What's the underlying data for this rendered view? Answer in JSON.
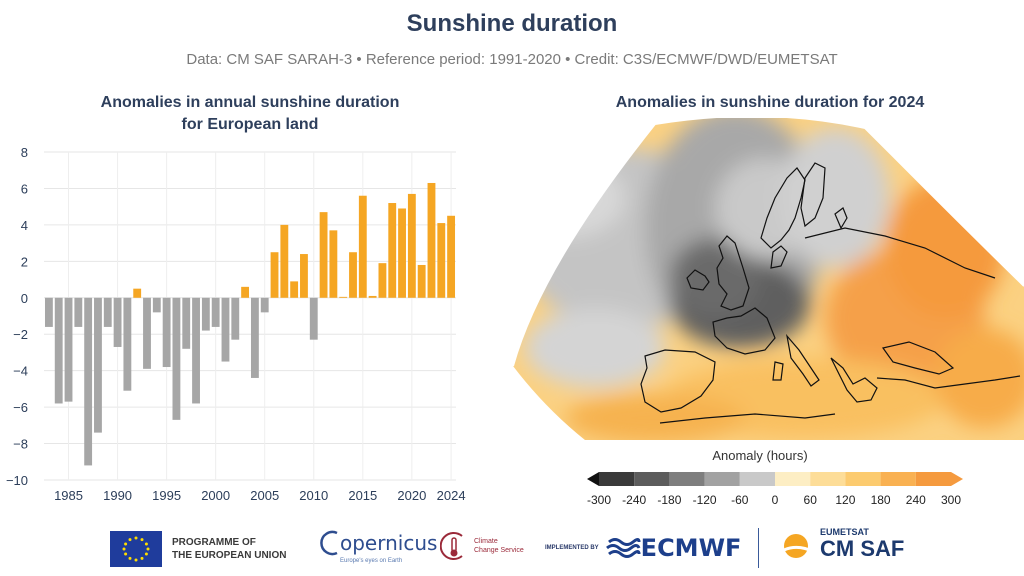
{
  "header": {
    "title": "Sunshine duration",
    "subtitle": "Data: CM SAF SARAH-3 • Reference period: 1991-2020 • Credit: C3S/ECMWF/DWD/EUMETSAT"
  },
  "chart_data": [
    {
      "type": "bar",
      "title": "Anomalies in annual sunshine duration for European land",
      "title_lines": [
        "Anomalies in annual sunshine duration",
        "for European land"
      ],
      "xlabel": "",
      "ylabel": "",
      "ylim": [
        -10,
        8
      ],
      "yticks": [
        8,
        6,
        4,
        2,
        0,
        -2,
        -4,
        -6,
        -8,
        -10
      ],
      "xticks": [
        1985,
        1990,
        1995,
        2000,
        2005,
        2010,
        2015,
        2020,
        2024
      ],
      "grid": true,
      "colors": {
        "positive": "#f5a623",
        "negative": "#a6a6a6"
      },
      "x": [
        1983,
        1984,
        1985,
        1986,
        1987,
        1988,
        1989,
        1990,
        1991,
        1992,
        1993,
        1994,
        1995,
        1996,
        1997,
        1998,
        1999,
        2000,
        2001,
        2002,
        2003,
        2004,
        2005,
        2006,
        2007,
        2008,
        2009,
        2010,
        2011,
        2012,
        2013,
        2014,
        2015,
        2016,
        2017,
        2018,
        2019,
        2020,
        2021,
        2022,
        2023,
        2024
      ],
      "values": [
        -1.6,
        -5.8,
        -5.7,
        -1.6,
        -9.2,
        -7.4,
        -1.6,
        -2.7,
        -5.1,
        0.5,
        -3.9,
        -0.8,
        -3.8,
        -6.7,
        -2.8,
        -5.8,
        -1.8,
        -1.6,
        -3.5,
        -2.3,
        0.6,
        -4.4,
        -0.8,
        2.5,
        4.0,
        0.9,
        2.4,
        -2.3,
        4.7,
        3.7,
        0.05,
        2.5,
        5.6,
        0.1,
        1.9,
        5.2,
        4.9,
        5.7,
        1.8,
        6.3,
        4.1,
        4.5
      ]
    },
    {
      "type": "heatmap",
      "title": "Anomalies in sunshine duration for 2024",
      "colorbar": {
        "label": "Anomaly (hours)",
        "ticks": [
          "-300",
          "-240",
          "-180",
          "-120",
          "-60",
          "0",
          "60",
          "120",
          "180",
          "240",
          "300"
        ],
        "colors": [
          "#3a3a3a",
          "#5c5c5c",
          "#7e7e7e",
          "#a2a2a2",
          "#c9c9c9",
          "#fdeec4",
          "#fddd98",
          "#fccb6f",
          "#f9b152",
          "#f59a3e"
        ],
        "extend": "both"
      }
    }
  ],
  "logos": {
    "eu_text": "PROGRAMME OF\nTHE EUROPEAN UNION",
    "copernicus": "opernicus",
    "copernicus_sub": "Europe's eyes on Earth",
    "ccs": "Climate\nChange Service",
    "implemented_by": "IMPLEMENTED BY",
    "ecmwf": "ECMWF",
    "eumetsat": "EUMETSAT",
    "cmsaf": "CM SAF"
  }
}
